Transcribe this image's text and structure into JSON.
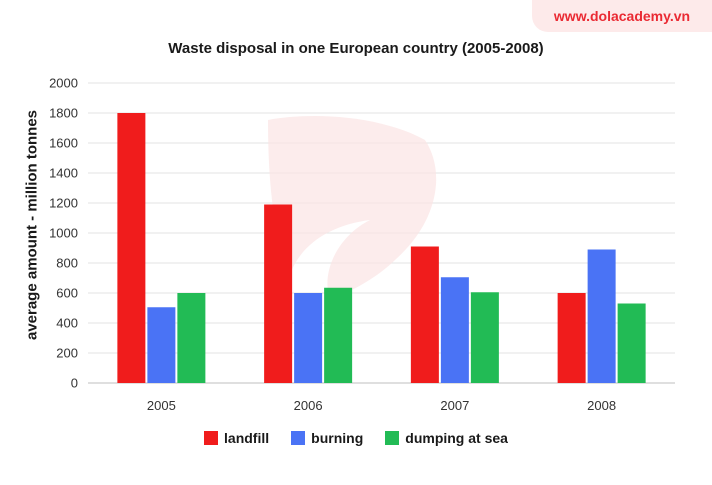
{
  "brand": {
    "text": "www.dolacademy.vn"
  },
  "chart_data": {
    "type": "bar",
    "title": "Waste disposal in one European country (2005-2008)",
    "xlabel": "",
    "ylabel": "average amount - million tonnes",
    "categories": [
      "2005",
      "2006",
      "2007",
      "2008"
    ],
    "ylim": [
      0,
      2000
    ],
    "yticks": [
      0,
      200,
      400,
      600,
      800,
      1000,
      1200,
      1400,
      1600,
      1800,
      2000
    ],
    "grid": true,
    "legend_position": "bottom",
    "series": [
      {
        "name": "landfill",
        "color": "#f01c1c",
        "values": [
          1800,
          1190,
          910,
          600
        ]
      },
      {
        "name": "burning",
        "color": "#4a73f5",
        "values": [
          505,
          600,
          705,
          890
        ]
      },
      {
        "name": "dumping at sea",
        "color": "#22bb55",
        "values": [
          600,
          635,
          605,
          530
        ]
      }
    ]
  }
}
